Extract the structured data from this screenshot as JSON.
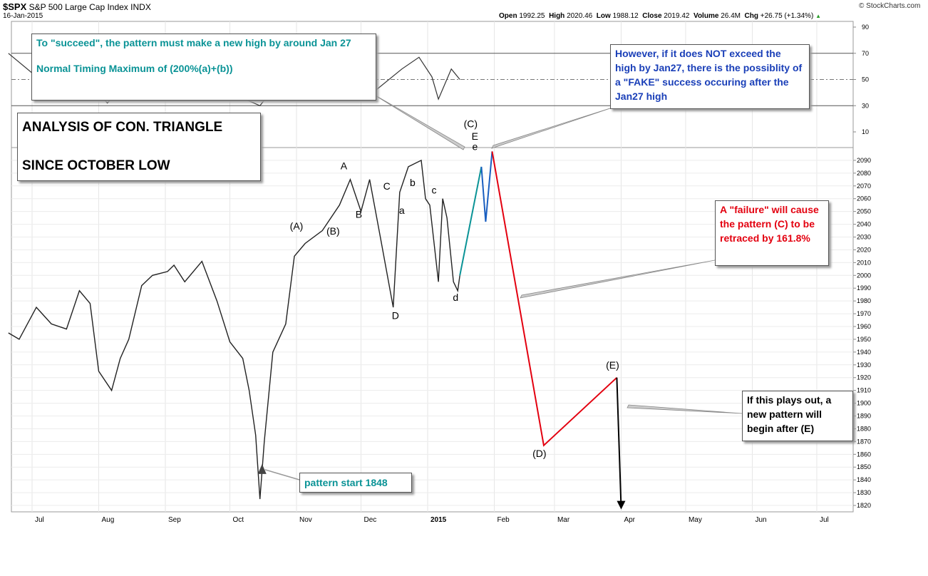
{
  "header": {
    "symbol": "$SPX",
    "name": "S&P 500 Large Cap Index",
    "exchange": "INDX",
    "date": "16-Jan-2015",
    "source": "© StockCharts.com",
    "open_label": "Open",
    "open": "1992.25",
    "high_label": "High",
    "high": "2020.46",
    "low_label": "Low",
    "low": "1988.12",
    "close_label": "Close",
    "close": "2019.42",
    "volume_label": "Volume",
    "volume": "26.4M",
    "chg_label": "Chg",
    "chg": "+26.75 (+1.34%)"
  },
  "notes": {
    "succeed_1": "To \"succeed\", the pattern must make a new high by around Jan 27",
    "succeed_2": "Normal Timing Maximum of (200%(a)+(b))",
    "analysis_1": "ANALYSIS OF CON. TRIANGLE",
    "analysis_2": "SINCE OCTOBER LOW",
    "fake": "However, if it does NOT exceed the high by Jan27, there is the possiblity of a \"FAKE\" success occuring after the Jan27 high",
    "failure": "A \"failure\" will cause the pattern (C) to be retraced by 161.8%",
    "new_pattern": "If this plays out, a new pattern will begin after (E)",
    "pattern_start": "pattern start 1848"
  },
  "chart_data": [
    {
      "type": "line",
      "panel": "indicator",
      "yticks": [
        10,
        30,
        50,
        70,
        90
      ],
      "reference_lines": [
        30,
        50,
        70
      ]
    },
    {
      "type": "candlestick",
      "panel": "price",
      "ylim": [
        1815,
        2100
      ],
      "yticks": [
        1820,
        1830,
        1840,
        1850,
        1860,
        1870,
        1880,
        1890,
        1900,
        1910,
        1920,
        1930,
        1940,
        1950,
        1960,
        1970,
        1980,
        1990,
        2000,
        2010,
        2020,
        2030,
        2040,
        2050,
        2060,
        2070,
        2080,
        2090
      ],
      "x_tick_labels": [
        "Jul",
        "Aug",
        "Sep",
        "Oct",
        "Nov",
        "Dec",
        "2015",
        "Feb",
        "Mar",
        "Apr",
        "May",
        "Jun",
        "Jul"
      ],
      "wave_labels": [
        "(A)",
        "(B)",
        "A",
        "B",
        "C",
        "D",
        "a",
        "b",
        "c",
        "d",
        "e",
        "E",
        "(C)",
        "(D)",
        "(E)"
      ],
      "projections": [
        {
          "name": "rally to e",
          "color": "#0a9396",
          "points": [
            [
              "2015-01-16",
              2000
            ],
            [
              "2015-01-26",
              2085
            ]
          ]
        },
        {
          "name": "fake success",
          "color": "#1a5fc0",
          "points": [
            [
              "2015-01-26",
              2085
            ],
            [
              "2015-01-28",
              2042
            ],
            [
              "2015-01-31",
              2097
            ]
          ]
        },
        {
          "name": "failure path",
          "color": "#e3000f",
          "points": [
            [
              "2015-01-31",
              2097
            ],
            [
              "2015-02-24",
              1867
            ],
            [
              "2015-03-30",
              1920
            ]
          ]
        },
        {
          "name": "after (E)",
          "color": "#000000",
          "points": [
            [
              "2015-03-30",
              1920
            ],
            [
              "2015-04-01",
              1818
            ]
          ]
        }
      ]
    }
  ]
}
